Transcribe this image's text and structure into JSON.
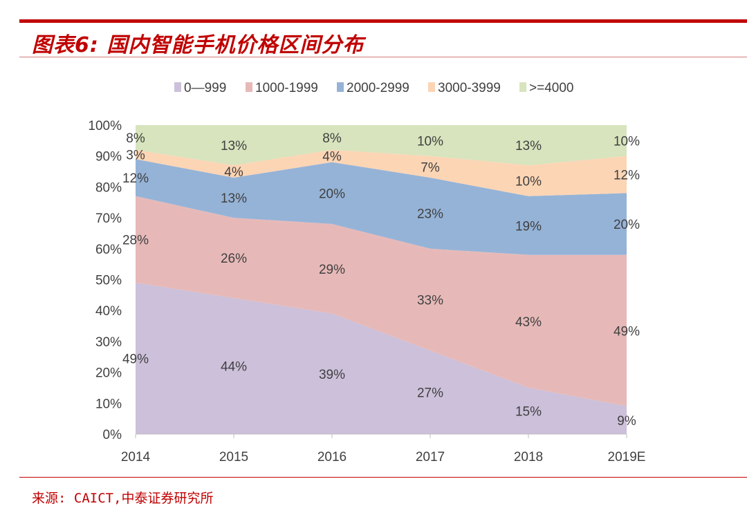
{
  "header": {
    "title": "图表6: 国内智能手机价格区间分布"
  },
  "footer": {
    "source": "来源: CAICT,中泰证券研究所"
  },
  "chart_data": {
    "type": "area",
    "stacked": "percent",
    "categories": [
      "2014",
      "2015",
      "2016",
      "2017",
      "2018",
      "2019E"
    ],
    "series": [
      {
        "name": "0—999",
        "color": "#ccc0da",
        "values": [
          49,
          44,
          39,
          27,
          15,
          9
        ]
      },
      {
        "name": "1000-1999",
        "color": "#e6b9b8",
        "values": [
          28,
          26,
          29,
          33,
          43,
          49
        ]
      },
      {
        "name": "2000-2999",
        "color": "#95b3d7",
        "values": [
          12,
          13,
          20,
          23,
          19,
          20
        ]
      },
      {
        "name": "3000-3999",
        "color": "#fcd5b5",
        "values": [
          3,
          4,
          4,
          7,
          10,
          12
        ]
      },
      {
        "name": ">=4000",
        "color": "#d7e4bd",
        "values": [
          8,
          13,
          8,
          10,
          13,
          10
        ]
      }
    ],
    "ylim": [
      0,
      100
    ],
    "yticks": [
      "0%",
      "10%",
      "20%",
      "30%",
      "40%",
      "50%",
      "60%",
      "70%",
      "80%",
      "90%",
      "100%"
    ],
    "legend": "top",
    "grid": false
  }
}
